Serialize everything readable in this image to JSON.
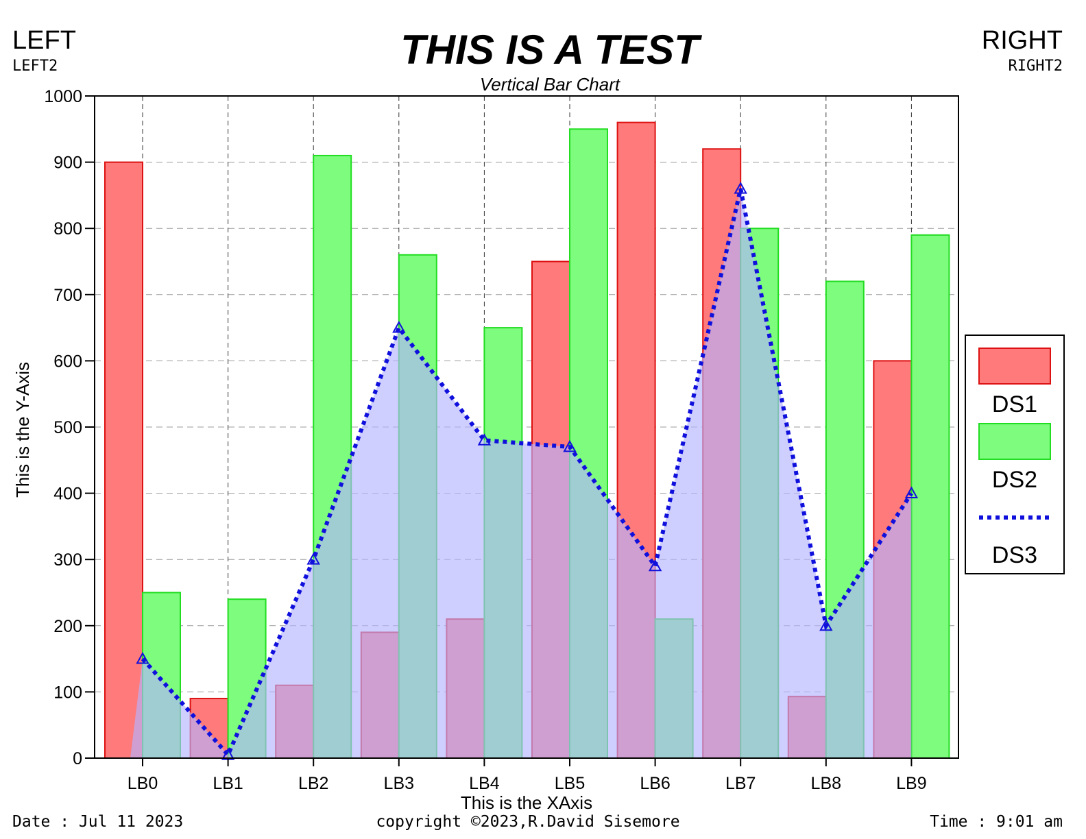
{
  "header": {
    "left": "LEFT",
    "left2": "LEFT2",
    "right": "RIGHT",
    "right2": "RIGHT2"
  },
  "footer": {
    "date": "Date : Jul 11 2023",
    "copyright": "copyright ©2023,R.David Sisemore",
    "time": "Time : 9:01 am"
  },
  "colors": {
    "ds1_fill": "#ff7a7a",
    "ds1_stroke": "#dd1111",
    "ds2_fill": "#7dfc7d",
    "ds2_stroke": "#22dd22",
    "ds3_line": "#1010dd",
    "ds3_area": "#b4b4ff",
    "grid": "#999999"
  },
  "chart_data": {
    "type": "bar",
    "title": "THIS IS A TEST",
    "subtitle": "Vertical Bar Chart",
    "xlabel": "This is the XAxis",
    "ylabel": "This is the Y-Axis",
    "categories": [
      "LB0",
      "LB1",
      "LB2",
      "LB3",
      "LB4",
      "LB5",
      "LB6",
      "LB7",
      "LB8",
      "LB9"
    ],
    "ylim": [
      0,
      1000
    ],
    "yticks": [
      0,
      100,
      200,
      300,
      400,
      500,
      600,
      700,
      800,
      900,
      1000
    ],
    "grid": true,
    "legend_position": "right",
    "series": [
      {
        "name": "DS1",
        "type": "bar",
        "values": [
          900,
          90,
          110,
          190,
          210,
          750,
          960,
          920,
          93,
          600
        ]
      },
      {
        "name": "DS2",
        "type": "bar",
        "values": [
          250,
          240,
          910,
          760,
          650,
          950,
          210,
          800,
          720,
          790
        ]
      },
      {
        "name": "DS3",
        "type": "line",
        "style": "dotted",
        "area": true,
        "marker": "triangle",
        "values": [
          150,
          5,
          300,
          650,
          480,
          470,
          290,
          860,
          200,
          400
        ]
      }
    ]
  }
}
